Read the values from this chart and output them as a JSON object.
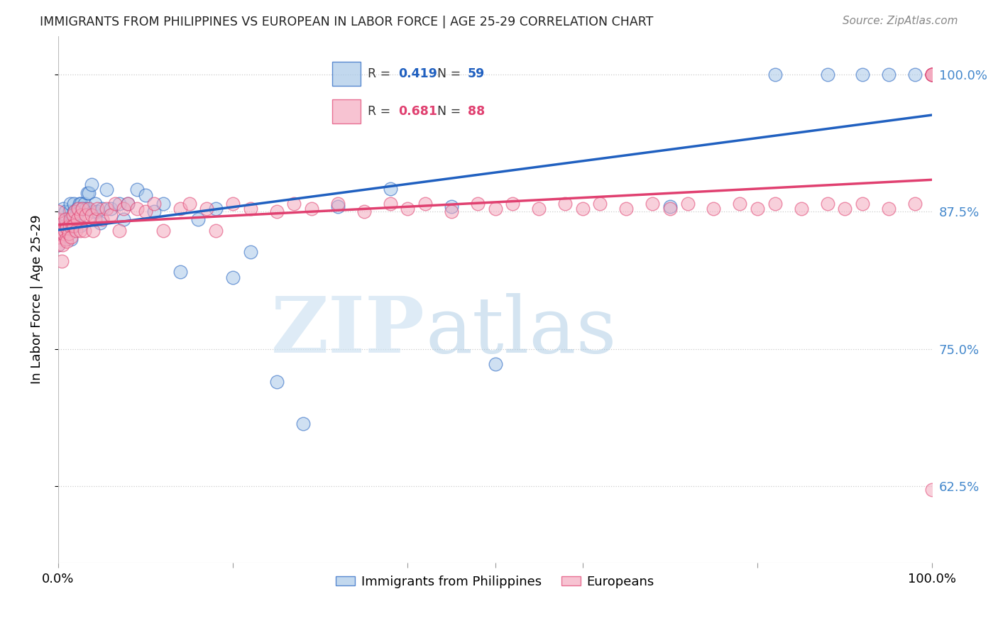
{
  "title": "IMMIGRANTS FROM PHILIPPINES VS EUROPEAN IN LABOR FORCE | AGE 25-29 CORRELATION CHART",
  "source": "Source: ZipAtlas.com",
  "ylabel": "In Labor Force | Age 25-29",
  "legend_label1": "Immigrants from Philippines",
  "legend_label2": "Europeans",
  "R1": 0.419,
  "N1": 59,
  "R2": 0.681,
  "N2": 88,
  "color_blue": "#a8c8e8",
  "color_pink": "#f4aabf",
  "color_blue_line": "#2060c0",
  "color_pink_line": "#e04070",
  "color_right_axis": "#4488cc",
  "xlim": [
    0.0,
    1.0
  ],
  "ylim": [
    0.555,
    1.035
  ],
  "blue_x": [
    0.0,
    0.0,
    0.0,
    0.005,
    0.006,
    0.007,
    0.008,
    0.01,
    0.012,
    0.013,
    0.014,
    0.015,
    0.016,
    0.018,
    0.018,
    0.019,
    0.02,
    0.022,
    0.024,
    0.025,
    0.026,
    0.028,
    0.03,
    0.032,
    0.033,
    0.035,
    0.038,
    0.04,
    0.042,
    0.045,
    0.048,
    0.05,
    0.055,
    0.06,
    0.07,
    0.075,
    0.08,
    0.09,
    0.1,
    0.11,
    0.12,
    0.14,
    0.16,
    0.18,
    0.2,
    0.22,
    0.25,
    0.28,
    0.32,
    0.38,
    0.45,
    0.5,
    0.7,
    0.82,
    0.88,
    0.92,
    0.95,
    0.98,
    1.0
  ],
  "blue_y": [
    0.845,
    0.858,
    0.862,
    0.855,
    0.878,
    0.862,
    0.875,
    0.868,
    0.858,
    0.875,
    0.882,
    0.85,
    0.868,
    0.875,
    0.882,
    0.862,
    0.872,
    0.878,
    0.882,
    0.862,
    0.882,
    0.878,
    0.882,
    0.878,
    0.892,
    0.892,
    0.9,
    0.875,
    0.882,
    0.875,
    0.865,
    0.878,
    0.895,
    0.878,
    0.882,
    0.868,
    0.882,
    0.895,
    0.89,
    0.875,
    0.882,
    0.82,
    0.868,
    0.878,
    0.815,
    0.838,
    0.72,
    0.682,
    0.88,
    0.896,
    0.88,
    0.736,
    0.88,
    1.0,
    1.0,
    1.0,
    1.0,
    1.0,
    1.0
  ],
  "pink_x": [
    0.0,
    0.0,
    0.0,
    0.0,
    0.0,
    0.0,
    0.004,
    0.005,
    0.006,
    0.007,
    0.008,
    0.009,
    0.01,
    0.01,
    0.012,
    0.013,
    0.014,
    0.015,
    0.016,
    0.017,
    0.018,
    0.019,
    0.02,
    0.022,
    0.023,
    0.025,
    0.026,
    0.028,
    0.03,
    0.032,
    0.035,
    0.038,
    0.04,
    0.042,
    0.045,
    0.05,
    0.055,
    0.06,
    0.065,
    0.07,
    0.075,
    0.08,
    0.09,
    0.1,
    0.11,
    0.12,
    0.14,
    0.15,
    0.17,
    0.18,
    0.2,
    0.22,
    0.25,
    0.27,
    0.29,
    0.32,
    0.35,
    0.38,
    0.4,
    0.42,
    0.45,
    0.48,
    0.5,
    0.52,
    0.55,
    0.58,
    0.6,
    0.62,
    0.65,
    0.68,
    0.7,
    0.72,
    0.75,
    0.78,
    0.8,
    0.82,
    0.85,
    0.88,
    0.9,
    0.92,
    0.95,
    0.98,
    1.0,
    1.0,
    1.0,
    1.0,
    1.0,
    1.0
  ],
  "pink_y": [
    0.845,
    0.852,
    0.858,
    0.862,
    0.868,
    0.875,
    0.83,
    0.845,
    0.855,
    0.858,
    0.868,
    0.85,
    0.848,
    0.86,
    0.855,
    0.862,
    0.868,
    0.852,
    0.862,
    0.872,
    0.862,
    0.875,
    0.858,
    0.868,
    0.878,
    0.858,
    0.872,
    0.878,
    0.858,
    0.872,
    0.878,
    0.872,
    0.858,
    0.868,
    0.878,
    0.868,
    0.878,
    0.872,
    0.882,
    0.858,
    0.878,
    0.882,
    0.878,
    0.875,
    0.882,
    0.858,
    0.878,
    0.882,
    0.878,
    0.858,
    0.882,
    0.878,
    0.875,
    0.882,
    0.878,
    0.882,
    0.875,
    0.882,
    0.878,
    0.882,
    0.875,
    0.882,
    0.878,
    0.882,
    0.878,
    0.882,
    0.878,
    0.882,
    0.878,
    0.882,
    0.878,
    0.882,
    0.878,
    0.882,
    0.878,
    0.882,
    0.878,
    0.882,
    0.878,
    0.882,
    0.878,
    0.882,
    1.0,
    1.0,
    1.0,
    1.0,
    0.622,
    1.0
  ]
}
